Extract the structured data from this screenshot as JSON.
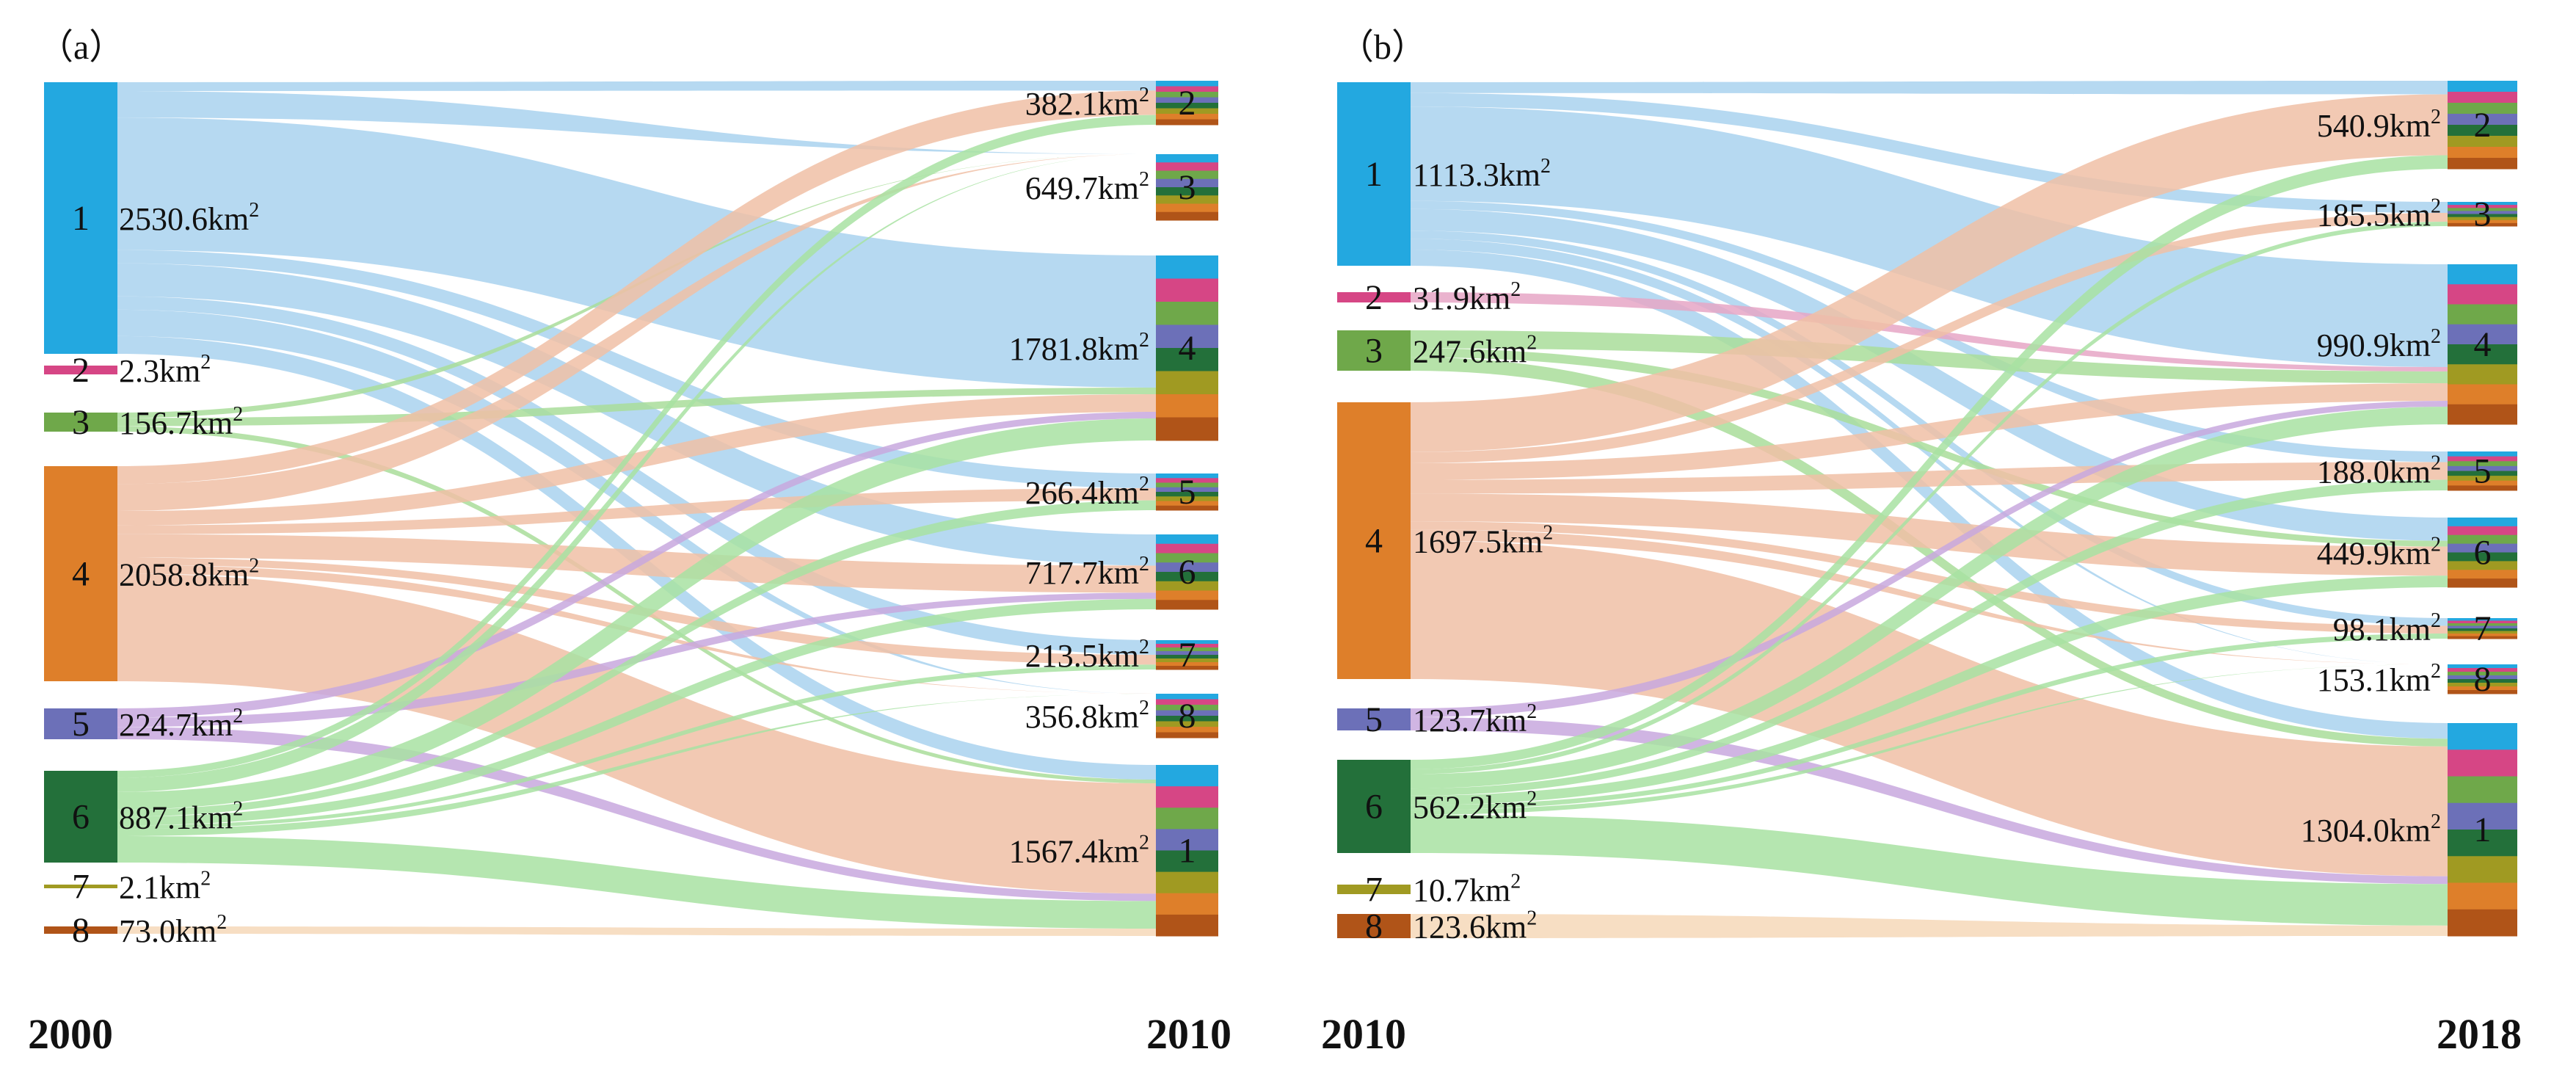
{
  "colors": {
    "class": {
      "1": "#23a8e0",
      "2": "#d64685",
      "3": "#6fa84a",
      "4": "#de7f2a",
      "5": "#6c70b8",
      "6": "#23703a",
      "7": "#a09a22",
      "8": "#b05418"
    },
    "flow": {
      "1": "#a9d2ee",
      "2": "#e6a6c6",
      "3": "#a9dd9a",
      "4": "#f0bfa6",
      "5": "#c8a8de",
      "6": "#a8e2a2",
      "7": "#eadfa4",
      "8": "#f6d8b8"
    }
  },
  "chart_data": [
    {
      "type": "sankey",
      "panel_label": "（a）",
      "source_year": "2000",
      "target_year": "2010",
      "area_unit": "km",
      "area_unit_sup": "2",
      "sources": [
        {
          "code": "1",
          "area": "2530.6"
        },
        {
          "code": "2",
          "area": "2.3"
        },
        {
          "code": "3",
          "area": "156.7"
        },
        {
          "code": "4",
          "area": "2058.8"
        },
        {
          "code": "5",
          "area": "224.7"
        },
        {
          "code": "6",
          "area": "887.1"
        },
        {
          "code": "7",
          "area": "2.1"
        },
        {
          "code": "8",
          "area": "73.0"
        }
      ],
      "targets": [
        {
          "code": "2",
          "area": "382.1"
        },
        {
          "code": "3",
          "area": "649.7"
        },
        {
          "code": "4",
          "area": "1781.8"
        },
        {
          "code": "5",
          "area": "266.4"
        },
        {
          "code": "6",
          "area": "717.7"
        },
        {
          "code": "7",
          "area": "213.5"
        },
        {
          "code": "8",
          "area": "356.8"
        },
        {
          "code": "1",
          "area": "1567.4"
        }
      ]
    },
    {
      "type": "sankey",
      "panel_label": "（b）",
      "source_year": "2010",
      "target_year": "2018",
      "area_unit": "km",
      "area_unit_sup": "2",
      "sources": [
        {
          "code": "1",
          "area": "1113.3"
        },
        {
          "code": "2",
          "area": "31.9"
        },
        {
          "code": "3",
          "area": "247.6"
        },
        {
          "code": "4",
          "area": "1697.5"
        },
        {
          "code": "5",
          "area": "123.7"
        },
        {
          "code": "6",
          "area": "562.2"
        },
        {
          "code": "7",
          "area": "10.7"
        },
        {
          "code": "8",
          "area": "123.6"
        }
      ],
      "targets": [
        {
          "code": "2",
          "area": "540.9"
        },
        {
          "code": "3",
          "area": "185.5"
        },
        {
          "code": "4",
          "area": "990.9"
        },
        {
          "code": "5",
          "area": "188.0"
        },
        {
          "code": "6",
          "area": "449.9"
        },
        {
          "code": "7",
          "area": "98.1"
        },
        {
          "code": "8",
          "area": "153.1"
        },
        {
          "code": "1",
          "area": "1304.0"
        }
      ]
    }
  ]
}
